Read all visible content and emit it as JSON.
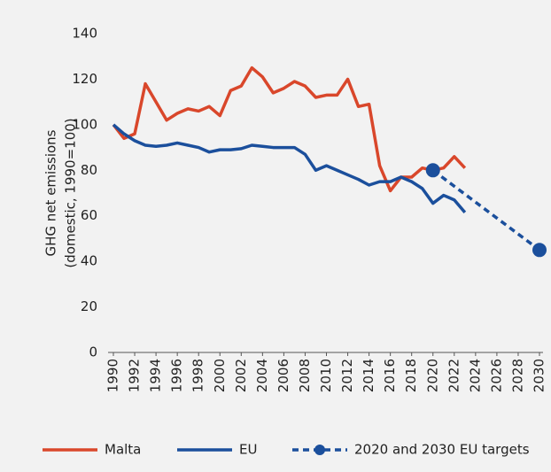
{
  "chart_data": {
    "type": "line",
    "ylabel": [
      "GHG net emissions",
      "(domestic, 1990=100)"
    ],
    "xlim": [
      1990,
      2030
    ],
    "xticks": [
      1990,
      1992,
      1994,
      1996,
      1998,
      2000,
      2002,
      2004,
      2006,
      2008,
      2010,
      2012,
      2014,
      2016,
      2018,
      2020,
      2022,
      2024,
      2026,
      2028,
      2030
    ],
    "ylim": [
      0,
      140
    ],
    "yticks": [
      0,
      20,
      40,
      60,
      80,
      100,
      120,
      140
    ],
    "grid": false,
    "legend": "bottom",
    "series": [
      {
        "name": "Malta",
        "color": "#d9472b",
        "x": [
          1990,
          1991,
          1992,
          1993,
          1994,
          1995,
          1996,
          1997,
          1998,
          1999,
          2000,
          2001,
          2002,
          2003,
          2004,
          2005,
          2006,
          2007,
          2008,
          2009,
          2010,
          2011,
          2012,
          2013,
          2014,
          2015,
          2016,
          2017,
          2018,
          2019,
          2020,
          2021,
          2022,
          2023
        ],
        "values": [
          100,
          94,
          96,
          118,
          110,
          102,
          105,
          107,
          106,
          108,
          104,
          115,
          117,
          125,
          121,
          114,
          116,
          119,
          117,
          112,
          113,
          113,
          120,
          108,
          109,
          82,
          71,
          77,
          77,
          81,
          80,
          81,
          86,
          81
        ]
      },
      {
        "name": "EU",
        "color": "#1b4f9c",
        "x": [
          1990,
          1991,
          1992,
          1993,
          1994,
          1995,
          1996,
          1997,
          1998,
          1999,
          2000,
          2001,
          2002,
          2003,
          2004,
          2005,
          2006,
          2007,
          2008,
          2009,
          2010,
          2011,
          2012,
          2013,
          2014,
          2015,
          2016,
          2017,
          2018,
          2019,
          2020,
          2021,
          2022,
          2023
        ],
        "values": [
          100,
          96,
          93,
          91,
          90.5,
          91,
          92,
          91,
          90,
          88,
          89,
          89,
          89.5,
          91,
          90.5,
          90,
          90,
          90,
          87,
          80,
          82,
          80,
          78,
          76,
          73.5,
          75,
          75,
          77,
          75,
          72,
          65.5,
          69,
          67,
          61.5
        ]
      },
      {
        "name": "2020 and 2030 EU targets",
        "color": "#1b4f9c",
        "dash": true,
        "marker": "circle",
        "x": [
          2020,
          2030
        ],
        "values": [
          80,
          45
        ]
      }
    ]
  }
}
